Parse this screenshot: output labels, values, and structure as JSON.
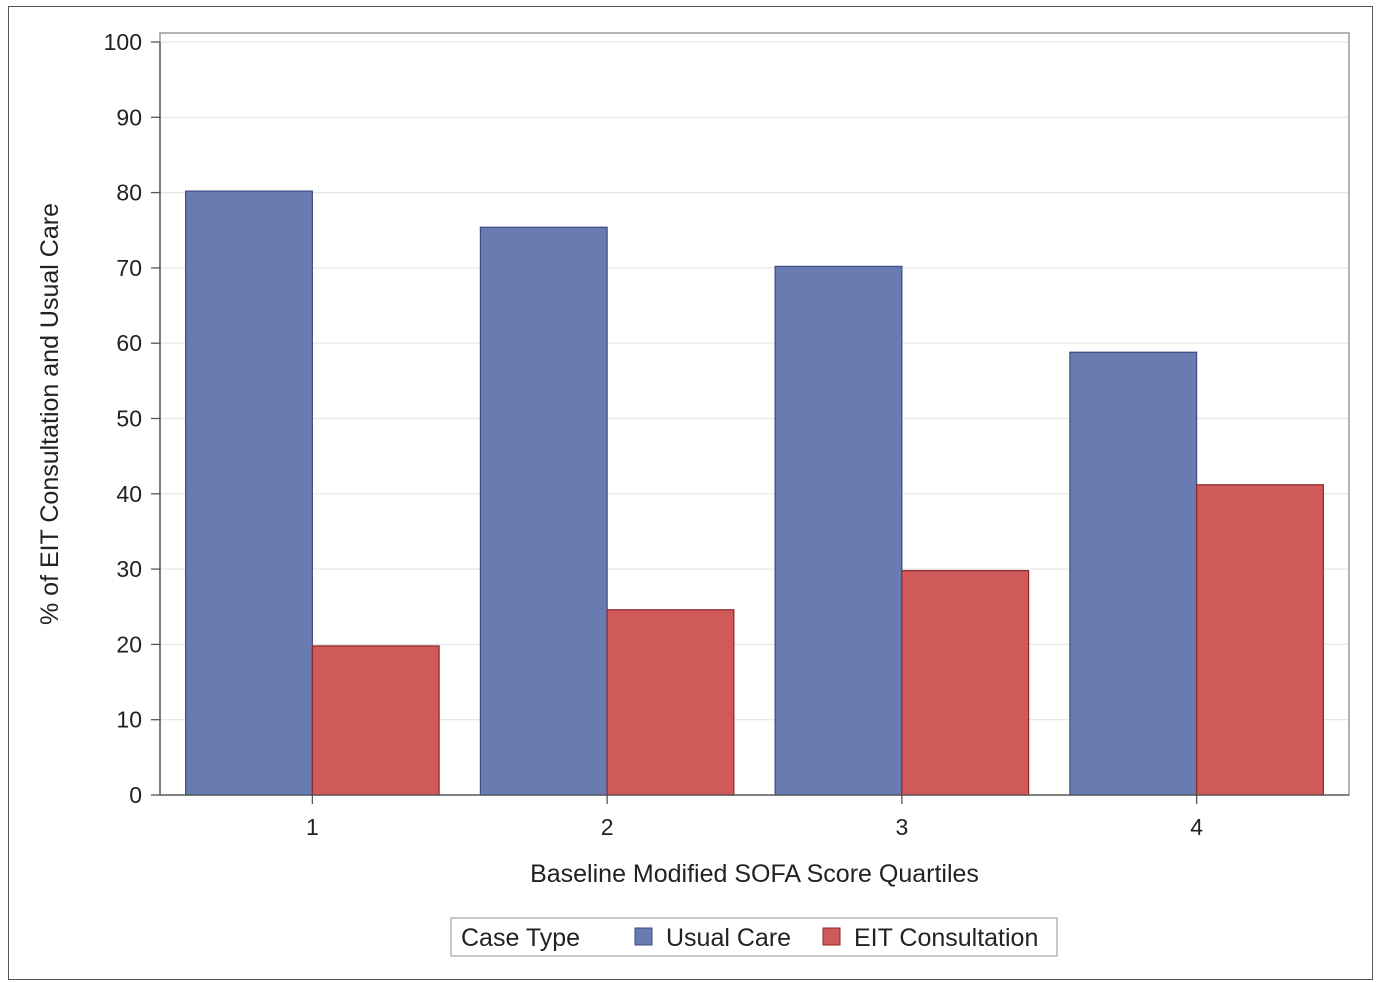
{
  "chart_data": {
    "type": "bar",
    "title": "",
    "xlabel": "Baseline Modified SOFA Score Quartiles",
    "ylabel": "% of EIT Consultation and Usual Care",
    "categories": [
      "1",
      "2",
      "3",
      "4"
    ],
    "ylim": [
      0,
      100
    ],
    "yticks": [
      0,
      10,
      20,
      30,
      40,
      50,
      60,
      70,
      80,
      90,
      100
    ],
    "grid": true,
    "series": [
      {
        "name": "Usual Care",
        "color": "#6a7bb2",
        "values": [
          80.2,
          75.4,
          70.2,
          58.8
        ]
      },
      {
        "name": "EIT Consultation",
        "color": "#d05a5a",
        "values": [
          19.8,
          24.6,
          29.8,
          41.2
        ]
      }
    ],
    "legend": {
      "title": "Case Type",
      "position": "bottom"
    }
  }
}
